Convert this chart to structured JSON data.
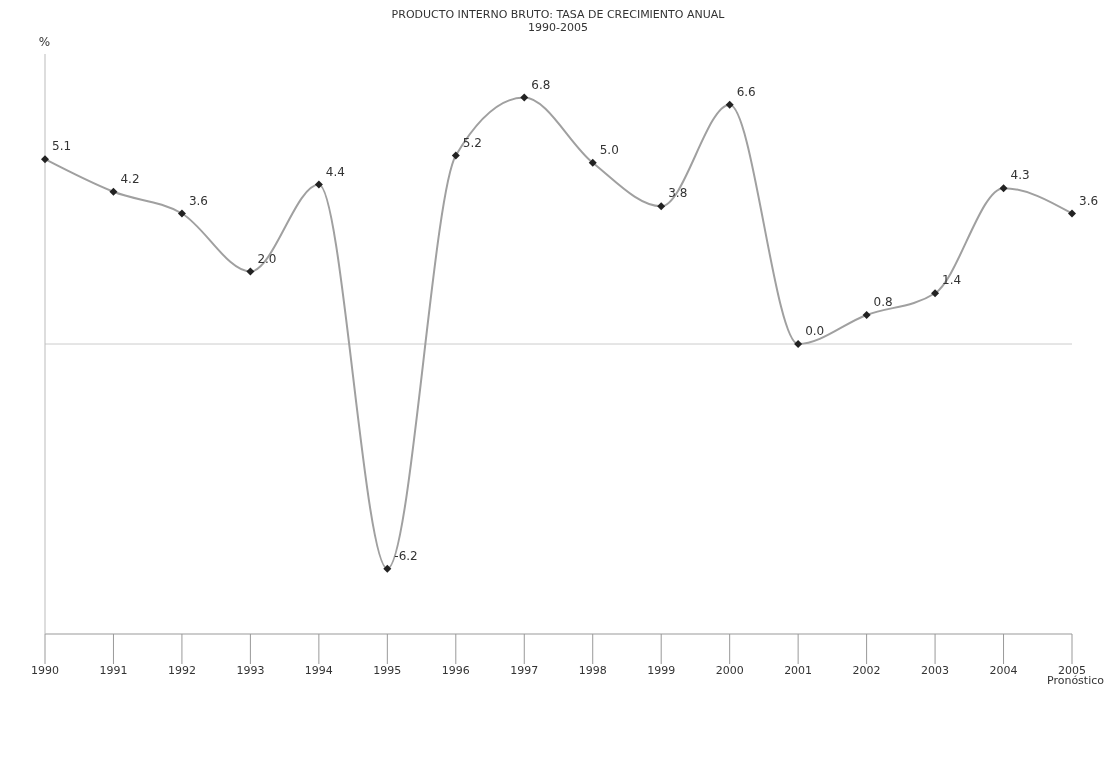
{
  "chart_data": {
    "type": "line",
    "title": "PRODUCTO INTERNO BRUTO: TASA DE CRECIMIENTO ANUAL",
    "subtitle": "1990-2005",
    "ylabel": "%",
    "categories": [
      "1990",
      "1991",
      "1992",
      "1993",
      "1994",
      "1995",
      "1996",
      "1997",
      "1998",
      "1999",
      "2000",
      "2001",
      "2002",
      "2003",
      "2004",
      "2005"
    ],
    "series": [
      {
        "color": "#a0a0a0",
        "values": [
          5.1,
          4.2,
          3.6,
          2.0,
          4.4,
          -6.2,
          5.2,
          6.8,
          5.0,
          3.8,
          6.6,
          0.0,
          0.8,
          1.4,
          4.3,
          3.6
        ],
        "value_labels": [
          "5.1",
          "4.2",
          "3.6",
          "2.0",
          "4.4",
          "-6.2",
          "5.2",
          "6.8",
          "5.0",
          "3.8",
          "6.6",
          "0.0",
          "0.8",
          "1.4",
          "4.3",
          "3.6"
        ]
      }
    ],
    "ref_lines": [
      {
        "axis": "y",
        "value": 0,
        "color": "#cccccc"
      }
    ],
    "marker": "diamond",
    "tick_labels": "x",
    "annotations": [
      "Pronóstico"
    ]
  }
}
